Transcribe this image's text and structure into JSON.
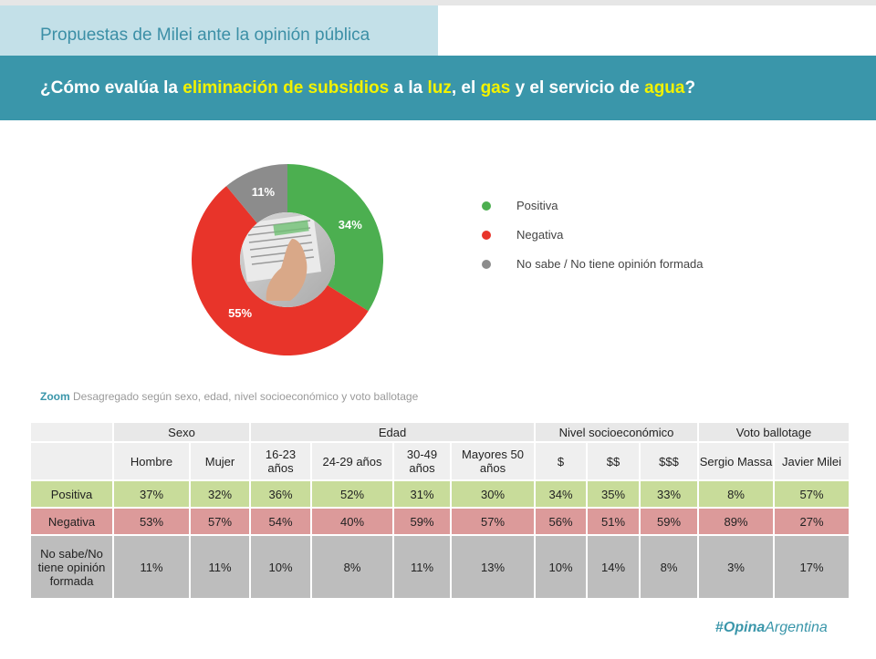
{
  "header": {
    "subtitle": "Propuestas de Milei ante la opinión pública",
    "question_parts": [
      "¿Cómo evalúa la ",
      "eliminación de subsidios",
      " a la ",
      "luz",
      ", el ",
      "gas",
      " y el servicio de ",
      "agua",
      "?"
    ]
  },
  "colors": {
    "positive": "#4caf50",
    "negative": "#e8342a",
    "unknown": "#8c8c8c",
    "accent": "#3a96aa",
    "highlight": "#f2f200"
  },
  "chart_data": {
    "type": "pie",
    "style": "donut",
    "categories": [
      "Positiva",
      "Negativa",
      "No sabe / No tiene opinión formada"
    ],
    "values": [
      34,
      55,
      11
    ],
    "data_labels": [
      "34%",
      "55%",
      "11%"
    ],
    "legend_position": "right"
  },
  "center_image": "hand-pointing-at-bill-photo",
  "zoom": {
    "keyword": "Zoom",
    "text": "Desagregado según sexo, edad, nivel socioeconómico y voto ballotage"
  },
  "table": {
    "groups": [
      "Sexo",
      "Edad",
      "Nivel socioeconómico",
      "Voto ballotage"
    ],
    "columns": [
      "Hombre",
      "Mujer",
      "16-23 años",
      "24-29 años",
      "30-49 años",
      "Mayores 50 años",
      "$",
      "$$",
      "$$$",
      "Sergio Massa",
      "Javier Milei"
    ],
    "rows": [
      {
        "label": "Positiva",
        "values": [
          "37%",
          "32%",
          "36%",
          "52%",
          "31%",
          "30%",
          "34%",
          "35%",
          "33%",
          "8%",
          "57%"
        ]
      },
      {
        "label": "Negativa",
        "values": [
          "53%",
          "57%",
          "54%",
          "40%",
          "59%",
          "57%",
          "56%",
          "51%",
          "59%",
          "89%",
          "27%"
        ]
      },
      {
        "label": "No sabe/No tiene opinión formada",
        "values": [
          "11%",
          "11%",
          "10%",
          "8%",
          "11%",
          "13%",
          "10%",
          "14%",
          "8%",
          "3%",
          "17%"
        ]
      }
    ]
  },
  "logo": {
    "prefix": "#",
    "part1": "Opina",
    "part2": "Argentina"
  }
}
